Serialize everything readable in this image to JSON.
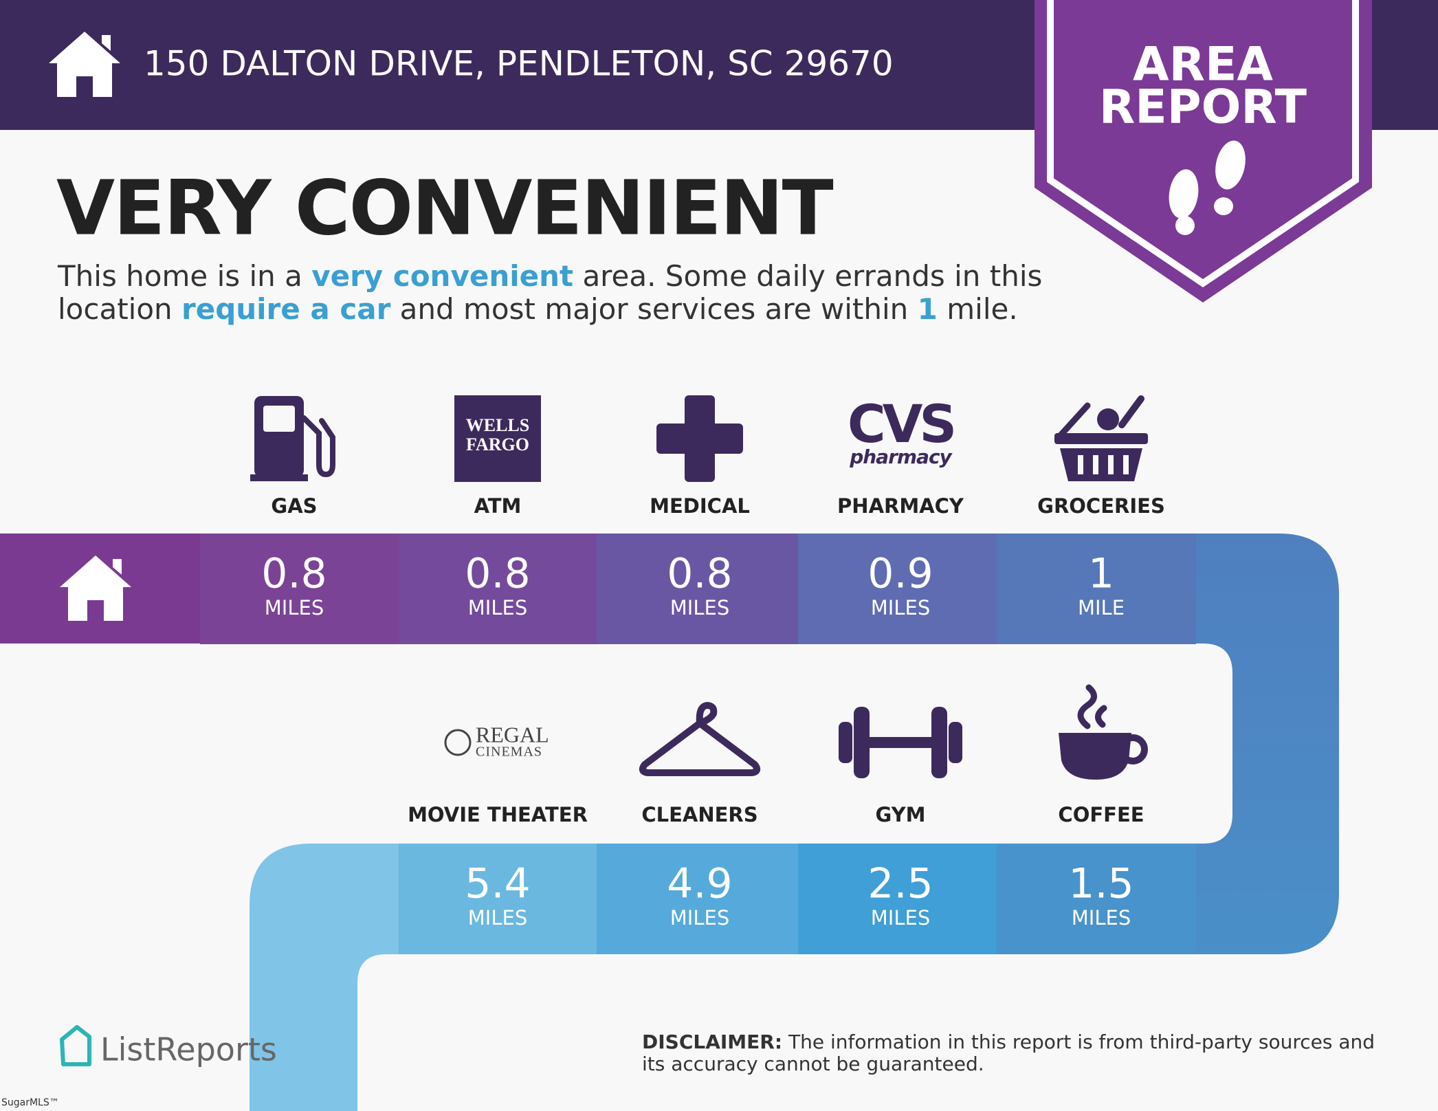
{
  "header": {
    "address": "150 DALTON DRIVE, PENDLETON, SC 29670"
  },
  "badge": {
    "lines": [
      "AREA",
      "REPORT"
    ]
  },
  "headline": "VERY CONVENIENT",
  "description": [
    "This home is in a ",
    "very convenient",
    " area. Some daily errands in this location ",
    "require a car",
    " and most major services are within ",
    "1",
    " mile."
  ],
  "amenities": [
    {
      "label": "GAS",
      "distance": 0.8,
      "unit": "MILES"
    },
    {
      "label": "ATM",
      "logo": [
        "WELLS",
        "FARGO"
      ],
      "distance": 0.8,
      "unit": "MILES"
    },
    {
      "label": "MEDICAL",
      "distance": 0.8,
      "unit": "MILES"
    },
    {
      "label": "PHARMACY",
      "logo": [
        "CVS",
        "pharmacy"
      ],
      "distance": 0.9,
      "unit": "MILES"
    },
    {
      "label": "GROCERIES",
      "distance": 1,
      "unit": "MILE"
    },
    {
      "label": "MOVIE THEATER",
      "logo": [
        "REGAL",
        "CINEMAS"
      ],
      "distance": 5.4,
      "unit": "MILES"
    },
    {
      "label": "CLEANERS",
      "distance": 4.9,
      "unit": "MILES"
    },
    {
      "label": "GYM",
      "distance": 2.5,
      "unit": "MILES"
    },
    {
      "label": "COFFEE",
      "distance": 1.5,
      "unit": "MILES"
    }
  ],
  "footer": {
    "brand": "ListReports",
    "disclaimer_label": "DISCLAIMER:",
    "disclaimer": "The information in this report is from third-party sources and its accuracy cannot be guaranteed.",
    "watermark": "SugarMLS™"
  }
}
